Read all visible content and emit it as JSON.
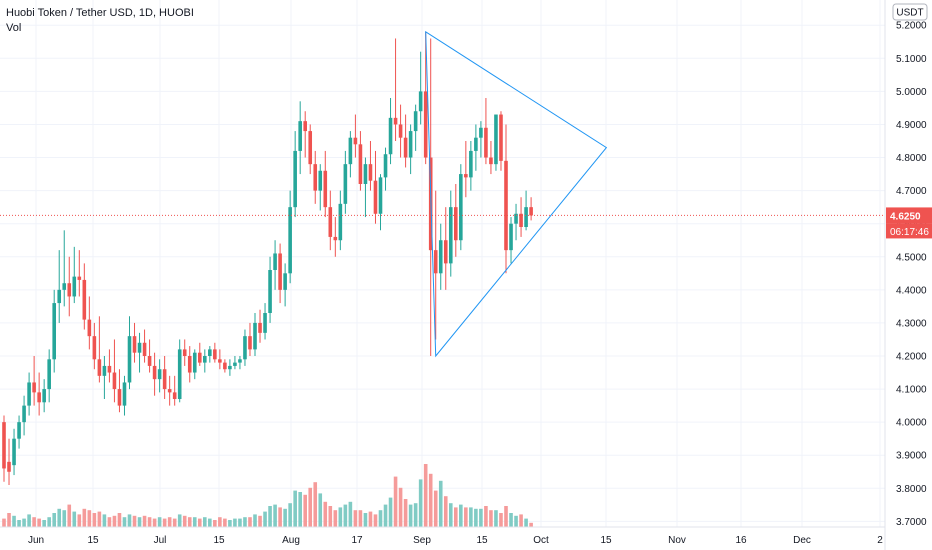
{
  "legend": {
    "title": "Huobi Token / Tether USD, 1D, HUOBI",
    "indicator": "Vol"
  },
  "price_scale": {
    "currency": "USDT"
  },
  "last_price_label": "4.6250",
  "countdown_label": "06:17:46",
  "colors": {
    "up": "#26a69a",
    "down": "#ef5350",
    "vol_up": "#80cbc4",
    "vol_down": "#f59b9a",
    "pattern": "#2196f3",
    "grid": "#f0f3fa",
    "price_line": "#ef5350"
  },
  "chart_data": {
    "type": "candlestick",
    "y_range": [
      3.68,
      5.24
    ],
    "y_ticks": [
      "5.2000",
      "5.1000",
      "5.0000",
      "4.9000",
      "4.8000",
      "4.7000",
      "4.6000",
      "4.5000",
      "4.4000",
      "4.3000",
      "4.2000",
      "4.1000",
      "4.0000",
      "3.9000",
      "3.8000",
      "3.7000"
    ],
    "x_labels": [
      "Jun",
      "15",
      "Jul",
      "15",
      "Aug",
      "17",
      "Sep",
      "15",
      "Oct",
      "15",
      "Nov",
      "16",
      "Dec",
      "2"
    ],
    "last_price": 4.625,
    "candles": [
      [
        4.0,
        4.02,
        3.82,
        3.86
      ],
      [
        3.88,
        3.95,
        3.81,
        3.85
      ],
      [
        3.87,
        3.98,
        3.84,
        3.95
      ],
      [
        3.95,
        4.02,
        3.92,
        4.0
      ],
      [
        4.0,
        4.08,
        3.96,
        4.05
      ],
      [
        4.05,
        4.15,
        4.02,
        4.12
      ],
      [
        4.12,
        4.2,
        4.05,
        4.09
      ],
      [
        4.09,
        4.15,
        4.02,
        4.06
      ],
      [
        4.06,
        4.13,
        4.03,
        4.1
      ],
      [
        4.1,
        4.22,
        4.06,
        4.19
      ],
      [
        4.19,
        4.4,
        4.15,
        4.36
      ],
      [
        4.36,
        4.52,
        4.3,
        4.4
      ],
      [
        4.4,
        4.58,
        4.35,
        4.42
      ],
      [
        4.42,
        4.5,
        4.32,
        4.38
      ],
      [
        4.38,
        4.53,
        4.36,
        4.44
      ],
      [
        4.44,
        4.52,
        4.38,
        4.43
      ],
      [
        4.43,
        4.48,
        4.28,
        4.31
      ],
      [
        4.31,
        4.38,
        4.22,
        4.26
      ],
      [
        4.26,
        4.3,
        4.16,
        4.19
      ],
      [
        4.19,
        4.32,
        4.12,
        4.14
      ],
      [
        4.14,
        4.2,
        4.07,
        4.17
      ],
      [
        4.17,
        4.22,
        4.12,
        4.15
      ],
      [
        4.15,
        4.25,
        4.06,
        4.1
      ],
      [
        4.1,
        4.16,
        4.03,
        4.05
      ],
      [
        4.05,
        4.14,
        4.02,
        4.12
      ],
      [
        4.12,
        4.32,
        4.1,
        4.26
      ],
      [
        4.26,
        4.3,
        4.18,
        4.21
      ],
      [
        4.21,
        4.27,
        4.15,
        4.24
      ],
      [
        4.24,
        4.28,
        4.18,
        4.2
      ],
      [
        4.2,
        4.25,
        4.15,
        4.17
      ],
      [
        4.17,
        4.21,
        4.08,
        4.13
      ],
      [
        4.13,
        4.19,
        4.09,
        4.16
      ],
      [
        4.16,
        4.2,
        4.07,
        4.1
      ],
      [
        4.1,
        4.14,
        4.05,
        4.09
      ],
      [
        4.09,
        4.14,
        4.05,
        4.07
      ],
      [
        4.07,
        4.25,
        4.06,
        4.22
      ],
      [
        4.22,
        4.25,
        4.17,
        4.2
      ],
      [
        4.2,
        4.23,
        4.12,
        4.15
      ],
      [
        4.15,
        4.22,
        4.13,
        4.21
      ],
      [
        4.21,
        4.24,
        4.17,
        4.18
      ],
      [
        4.18,
        4.22,
        4.15,
        4.2
      ],
      [
        4.2,
        4.23,
        4.18,
        4.22
      ],
      [
        4.22,
        4.24,
        4.18,
        4.19
      ],
      [
        4.19,
        4.22,
        4.16,
        4.18
      ],
      [
        4.18,
        4.19,
        4.15,
        4.16
      ],
      [
        4.16,
        4.19,
        4.14,
        4.17
      ],
      [
        4.17,
        4.2,
        4.16,
        4.18
      ],
      [
        4.18,
        4.2,
        4.16,
        4.19
      ],
      [
        4.19,
        4.28,
        4.17,
        4.26
      ],
      [
        4.26,
        4.3,
        4.2,
        4.22
      ],
      [
        4.22,
        4.33,
        4.2,
        4.3
      ],
      [
        4.3,
        4.34,
        4.24,
        4.27
      ],
      [
        4.27,
        4.36,
        4.25,
        4.33
      ],
      [
        4.33,
        4.5,
        4.3,
        4.46
      ],
      [
        4.46,
        4.55,
        4.4,
        4.51
      ],
      [
        4.51,
        4.54,
        4.36,
        4.4
      ],
      [
        4.4,
        4.48,
        4.35,
        4.45
      ],
      [
        4.45,
        4.7,
        4.42,
        4.65
      ],
      [
        4.65,
        4.88,
        4.62,
        4.82
      ],
      [
        4.82,
        4.97,
        4.75,
        4.91
      ],
      [
        4.91,
        4.94,
        4.8,
        4.88
      ],
      [
        4.88,
        4.9,
        4.75,
        4.78
      ],
      [
        4.78,
        4.82,
        4.66,
        4.7
      ],
      [
        4.7,
        4.78,
        4.64,
        4.76
      ],
      [
        4.76,
        4.82,
        4.62,
        4.65
      ],
      [
        4.65,
        4.7,
        4.52,
        4.56
      ],
      [
        4.56,
        4.62,
        4.5,
        4.55
      ],
      [
        4.55,
        4.7,
        4.52,
        4.66
      ],
      [
        4.66,
        4.82,
        4.63,
        4.78
      ],
      [
        4.78,
        4.88,
        4.74,
        4.86
      ],
      [
        4.86,
        4.93,
        4.8,
        4.84
      ],
      [
        4.84,
        4.88,
        4.7,
        4.72
      ],
      [
        4.72,
        4.8,
        4.62,
        4.78
      ],
      [
        4.78,
        4.85,
        4.7,
        4.73
      ],
      [
        4.73,
        4.82,
        4.6,
        4.63
      ],
      [
        4.63,
        4.75,
        4.58,
        4.74
      ],
      [
        4.74,
        4.83,
        4.7,
        4.81
      ],
      [
        4.81,
        4.98,
        4.78,
        4.92
      ],
      [
        4.92,
        5.16,
        4.85,
        4.9
      ],
      [
        4.9,
        4.96,
        4.8,
        4.86
      ],
      [
        4.86,
        4.93,
        4.77,
        4.8
      ],
      [
        4.8,
        4.9,
        4.75,
        4.88
      ],
      [
        4.88,
        4.96,
        4.82,
        4.94
      ],
      [
        4.94,
        5.12,
        4.9,
        5.0
      ],
      [
        5.0,
        5.18,
        4.78,
        4.8
      ],
      [
        4.8,
        5.16,
        4.2,
        4.52
      ],
      [
        4.52,
        4.7,
        4.25,
        4.45
      ],
      [
        4.45,
        4.6,
        4.4,
        4.55
      ],
      [
        4.55,
        4.65,
        4.4,
        4.48
      ],
      [
        4.48,
        4.7,
        4.44,
        4.65
      ],
      [
        4.65,
        4.72,
        4.5,
        4.55
      ],
      [
        4.55,
        4.78,
        4.52,
        4.75
      ],
      [
        4.75,
        4.85,
        4.68,
        4.74
      ],
      [
        4.74,
        4.85,
        4.7,
        4.82
      ],
      [
        4.82,
        4.9,
        4.76,
        4.86
      ],
      [
        4.86,
        4.91,
        4.8,
        4.89
      ],
      [
        4.89,
        4.98,
        4.78,
        4.8
      ],
      [
        4.8,
        4.85,
        4.75,
        4.78
      ],
      [
        4.78,
        4.93,
        4.76,
        4.93
      ],
      [
        4.93,
        4.94,
        4.76,
        4.79
      ],
      [
        4.79,
        4.9,
        4.45,
        4.52
      ],
      [
        4.52,
        4.62,
        4.48,
        4.6
      ],
      [
        4.6,
        4.66,
        4.55,
        4.63
      ],
      [
        4.63,
        4.68,
        4.56,
        4.59
      ],
      [
        4.59,
        4.7,
        4.58,
        4.65
      ],
      [
        4.65,
        4.68,
        4.61,
        4.625
      ]
    ],
    "volumes": [
      0.06,
      0.1,
      0.08,
      0.05,
      0.06,
      0.09,
      0.07,
      0.06,
      0.05,
      0.07,
      0.1,
      0.13,
      0.12,
      0.16,
      0.11,
      0.09,
      0.13,
      0.12,
      0.1,
      0.11,
      0.09,
      0.07,
      0.08,
      0.1,
      0.07,
      0.09,
      0.08,
      0.07,
      0.08,
      0.07,
      0.06,
      0.07,
      0.06,
      0.07,
      0.06,
      0.09,
      0.08,
      0.07,
      0.07,
      0.06,
      0.07,
      0.06,
      0.05,
      0.07,
      0.06,
      0.05,
      0.06,
      0.06,
      0.07,
      0.07,
      0.09,
      0.08,
      0.11,
      0.15,
      0.16,
      0.14,
      0.13,
      0.17,
      0.26,
      0.25,
      0.23,
      0.28,
      0.32,
      0.24,
      0.18,
      0.15,
      0.12,
      0.14,
      0.16,
      0.18,
      0.12,
      0.12,
      0.1,
      0.11,
      0.09,
      0.12,
      0.16,
      0.21,
      0.36,
      0.28,
      0.2,
      0.16,
      0.17,
      0.34,
      0.45,
      0.38,
      0.26,
      0.33,
      0.22,
      0.17,
      0.14,
      0.16,
      0.14,
      0.14,
      0.13,
      0.13,
      0.15,
      0.12,
      0.12,
      0.1,
      0.15,
      0.1,
      0.08,
      0.09,
      0.06,
      0.03
    ],
    "pattern": {
      "type": "triangle",
      "points": [
        [
          84,
          5.18
        ],
        [
          120,
          4.83
        ],
        [
          86,
          4.2
        ]
      ]
    }
  }
}
